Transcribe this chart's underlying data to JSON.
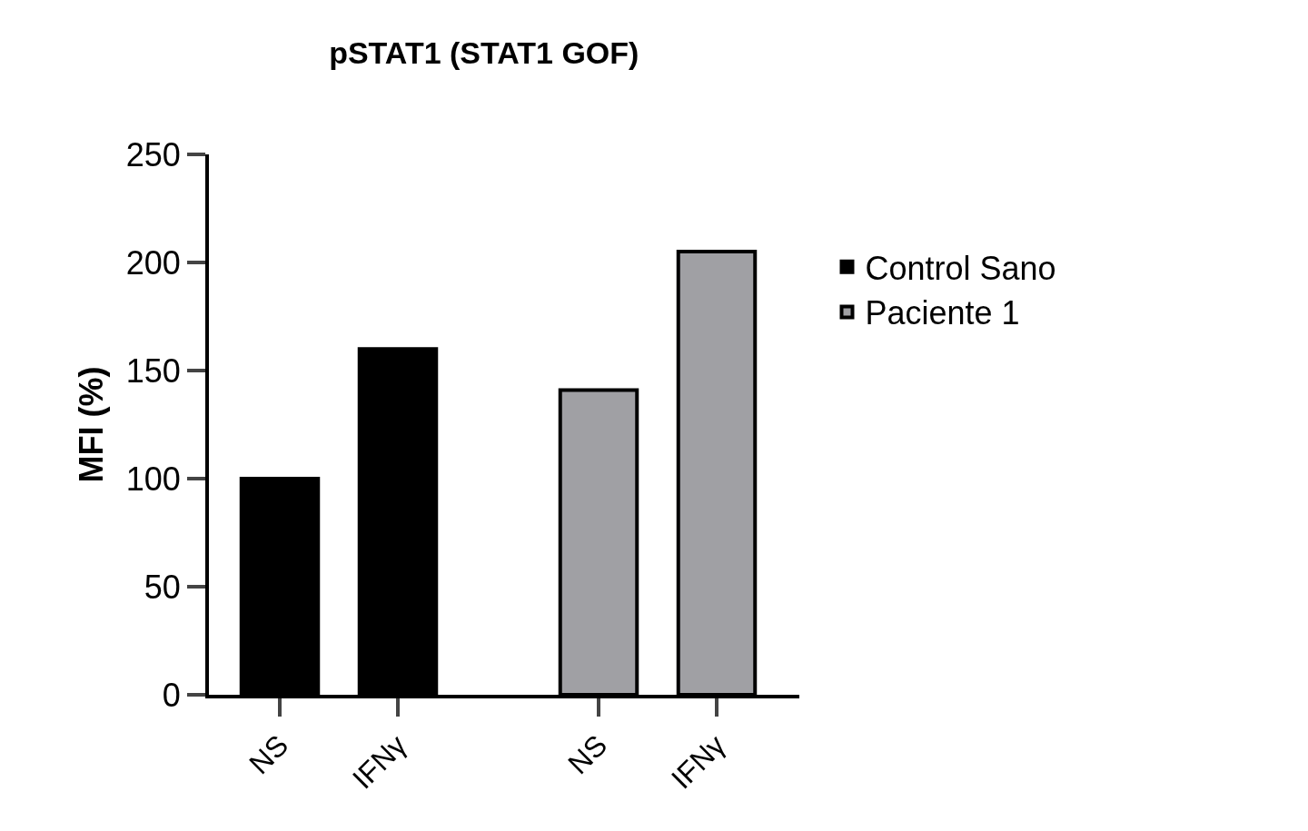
{
  "chart_data": {
    "type": "bar",
    "title": "pSTAT1 (STAT1 GOF)",
    "ylabel": "MFI (%)",
    "categories": [
      "NS",
      "IFNγ",
      "NS",
      "IFNγ"
    ],
    "series": [
      {
        "name": "Control Sano",
        "color": "#000000",
        "values": [
          100,
          160,
          null,
          null
        ]
      },
      {
        "name": "Paciente 1",
        "color": "#a0a0a4",
        "values": [
          null,
          null,
          141,
          205
        ]
      }
    ],
    "ylim": [
      0,
      250
    ],
    "yticks": [
      0,
      50,
      100,
      150,
      200,
      250
    ],
    "legend": "right"
  }
}
